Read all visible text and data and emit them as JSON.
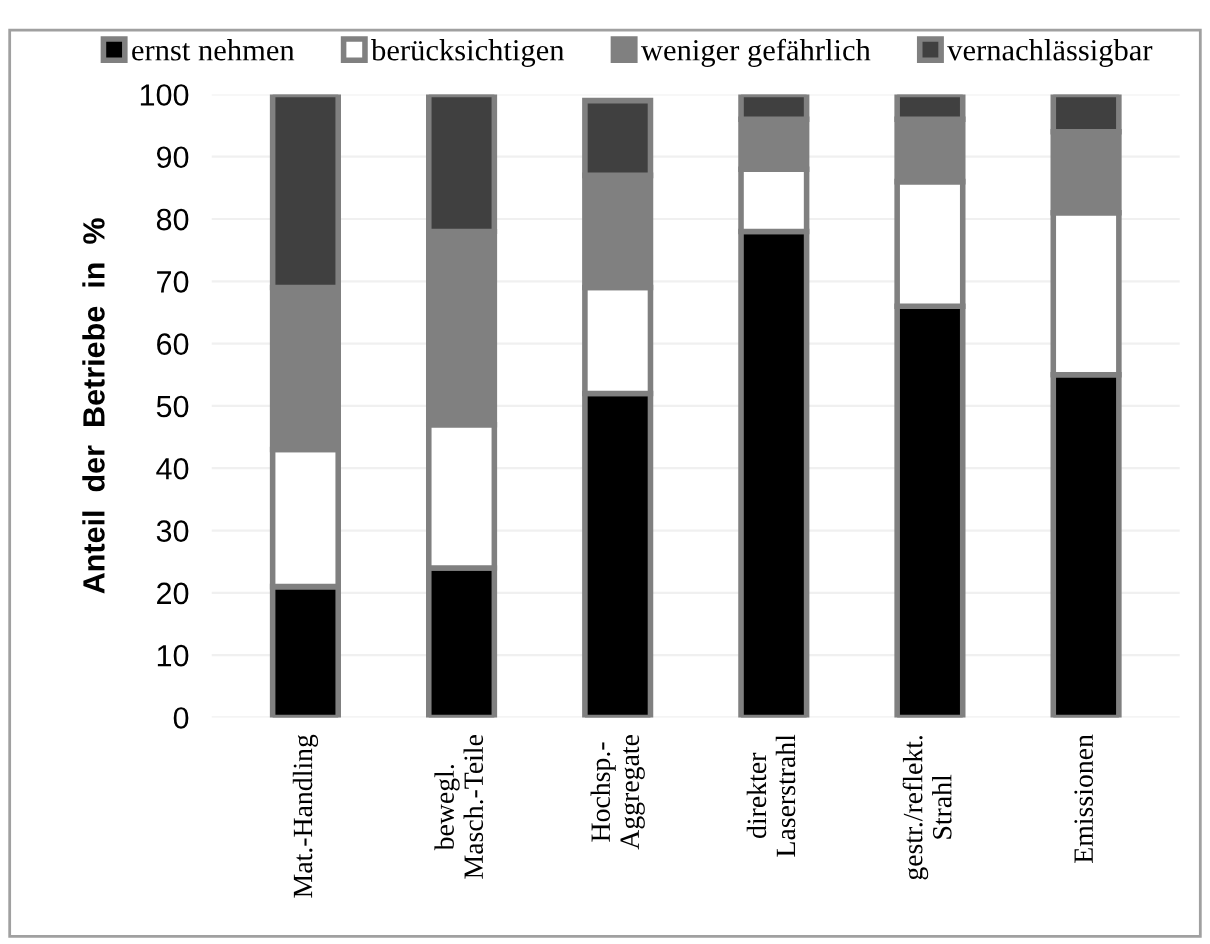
{
  "chart_data": {
    "type": "bar",
    "stacked": true,
    "ylabel": "Anteil  der  Betriebe  in  %",
    "categories": [
      "Mat.-Handling",
      "bewegl.\nMasch.-Teile",
      "Hochsp.-\nAggregate",
      "direkter\nLaserstrahl",
      "gestr./reflekt.\nStrahl",
      "Emissionen"
    ],
    "series": [
      {
        "name": "ernst nehmen",
        "color": "#000000",
        "values": [
          21,
          24,
          52,
          78,
          66,
          55
        ]
      },
      {
        "name": "berücksichtigen",
        "color": "#ffffff",
        "values": [
          22,
          23,
          17,
          10,
          20,
          26
        ]
      },
      {
        "name": "weniger gefährlich",
        "color": "#808080",
        "values": [
          26,
          31,
          18,
          8,
          10,
          13
        ]
      },
      {
        "name": "vernachlässigbar",
        "color": "#404040",
        "values": [
          31,
          22,
          12,
          4,
          4,
          6
        ]
      }
    ],
    "ylim": [
      0,
      100
    ],
    "yticks": [
      0,
      10,
      20,
      30,
      40,
      50,
      60,
      70,
      80,
      90,
      100
    ],
    "grid": "y",
    "legend": "top"
  }
}
